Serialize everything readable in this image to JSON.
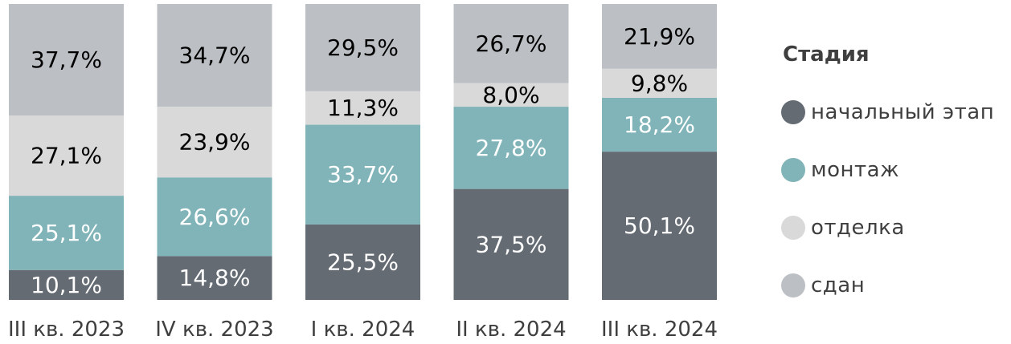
{
  "chart_data": {
    "type": "bar",
    "stacked": true,
    "normalized_percent": true,
    "categories": [
      "III кв. 2023",
      "IV кв. 2023",
      "I кв. 2024",
      "II кв. 2024",
      "III кв. 2024"
    ],
    "series": [
      {
        "name": "начальный этап",
        "color": "#646b72",
        "label_color": "#ffffff",
        "values": [
          10.1,
          14.8,
          25.5,
          37.5,
          50.1
        ],
        "labels": [
          "10,1%",
          "14,8%",
          "25,5%",
          "37,5%",
          "50,1%"
        ]
      },
      {
        "name": "монтаж",
        "color": "#81b4b8",
        "label_color": "#ffffff",
        "values": [
          25.1,
          26.6,
          33.7,
          27.8,
          18.2
        ],
        "labels": [
          "25,1%",
          "26,6%",
          "33,7%",
          "27,8%",
          "18,2%"
        ]
      },
      {
        "name": "отделка",
        "color": "#d9d9d9",
        "label_color": "#000000",
        "values": [
          27.1,
          23.9,
          11.3,
          8.0,
          9.8
        ],
        "labels": [
          "27,1%",
          "23,9%",
          "11,3%",
          "8,0%",
          "9,8%"
        ]
      },
      {
        "name": "сдан",
        "color": "#bcc0c5",
        "label_color": "#000000",
        "values": [
          37.7,
          34.7,
          29.5,
          26.7,
          21.9
        ],
        "labels": [
          "37,7%",
          "34,7%",
          "29,5%",
          "26,7%",
          "21,9%"
        ]
      }
    ],
    "legend": {
      "title": "Стадия",
      "position": "right"
    },
    "grid": false
  }
}
